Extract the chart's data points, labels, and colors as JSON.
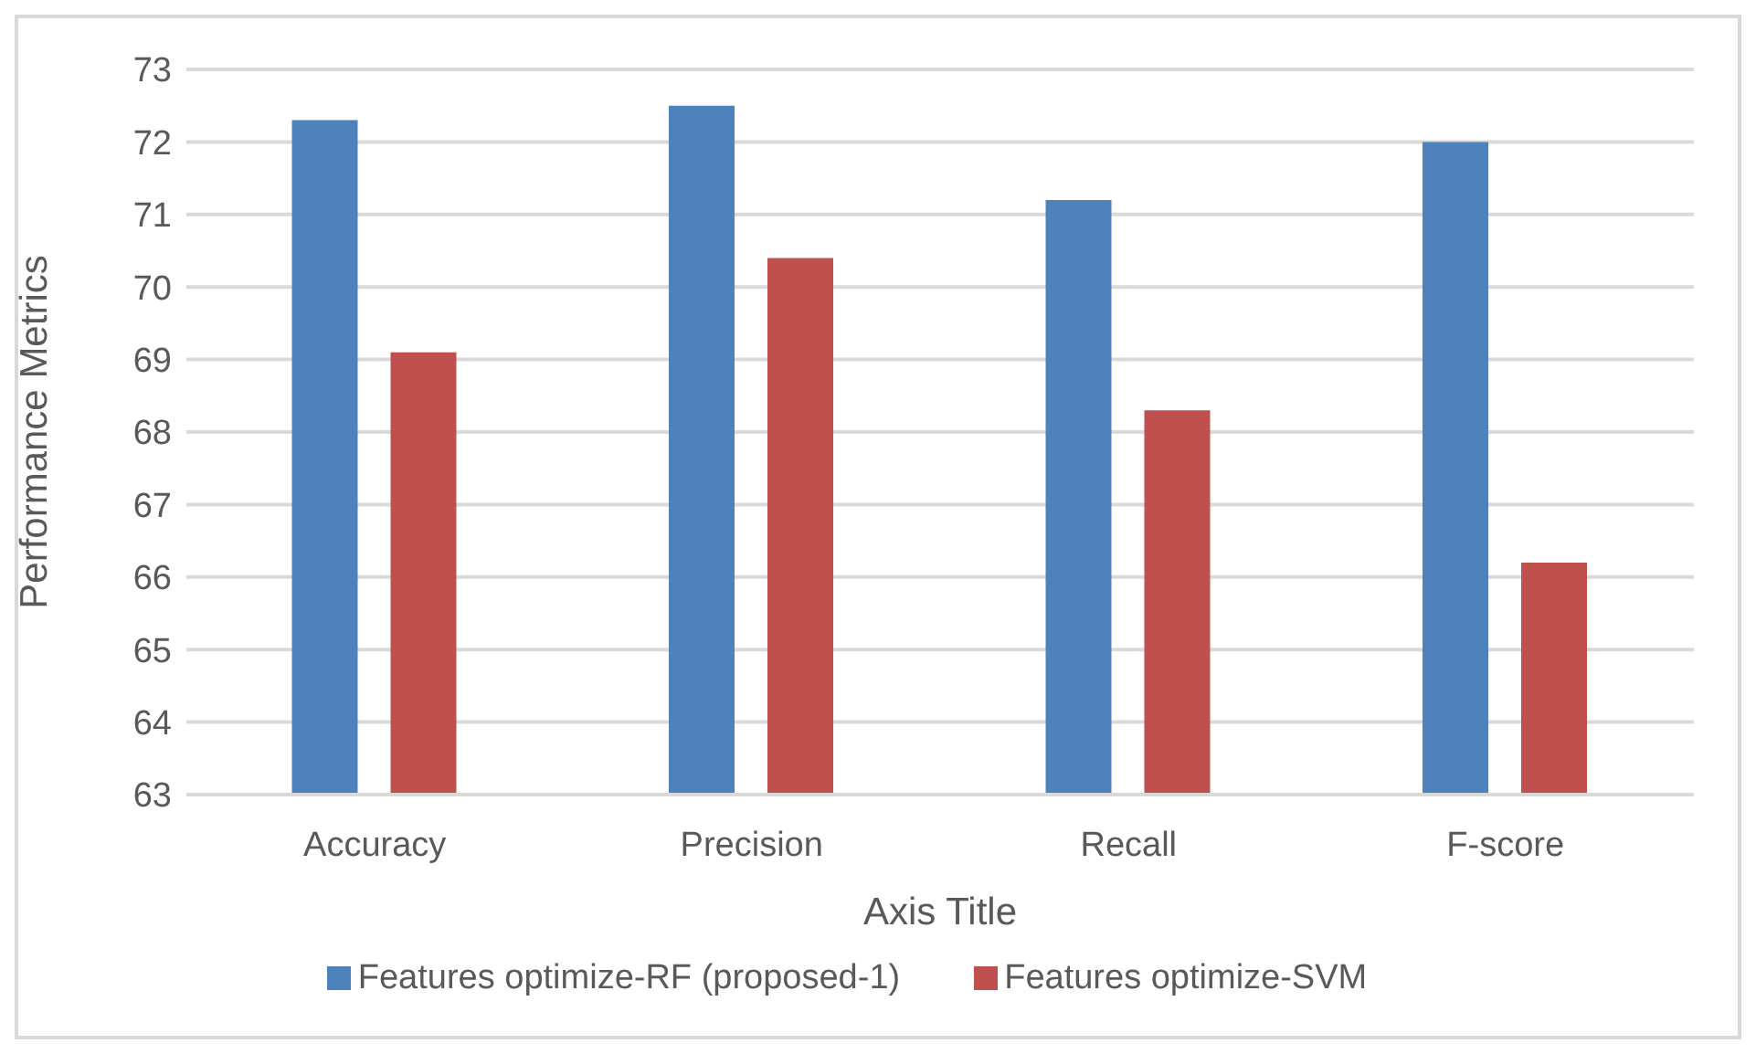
{
  "chart_data": {
    "type": "bar",
    "xlabel": "Axis Title",
    "ylabel": "Performance Metrics",
    "categories": [
      "Accuracy",
      "Precision",
      "Recall",
      "F-score"
    ],
    "series": [
      {
        "name": "Features optimize-RF (proposed-1)",
        "color": "#4f81bd",
        "values": [
          72.3,
          72.5,
          71.2,
          72.0
        ]
      },
      {
        "name": "Features optimize-SVM",
        "color": "#c0504d",
        "values": [
          69.1,
          70.4,
          68.3,
          66.2
        ]
      }
    ],
    "ylim": [
      63,
      73
    ],
    "yticks": [
      63,
      64,
      65,
      66,
      67,
      68,
      69,
      70,
      71,
      72,
      73
    ],
    "grid": "y",
    "legend": "bottom"
  }
}
